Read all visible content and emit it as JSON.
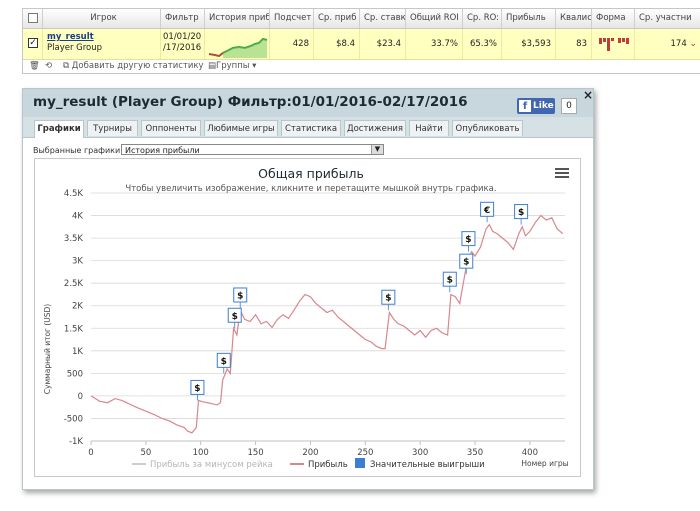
{
  "stats_table": {
    "columns": [
      "Игрок",
      "Фильтр",
      "История прибы",
      "Подсчет",
      "Ср. приб",
      "Ср. ставк",
      "Общий ROI",
      "Ср. RO:",
      "Прибыль",
      "Квалис",
      "Форма",
      "Ср. участни"
    ],
    "row": {
      "player_name": "my_result",
      "player_group": "Player Group",
      "filter_line1": "01/01/20",
      "filter_line2": "/17/2016",
      "count": "428",
      "avg_profit": "$8.4",
      "avg_stake": "$23.4",
      "total_roi": "33.7%",
      "avg_roi": "65.3%",
      "profit": "$3,593",
      "qualifications": "83",
      "avg_entrants": "174"
    },
    "toolbar": {
      "add_stat": "Добавить другую статистику",
      "groups": "Группы"
    }
  },
  "window": {
    "title": "my_result (Player Group) Фильтр:01/01/2016-02/17/2016",
    "like_label": "Like",
    "like_count": "0",
    "tabs": [
      "Графики",
      "Турниры",
      "Оппоненты",
      "Любимые игры",
      "Статистика",
      "Достижения",
      "Найти",
      "Опубликовать"
    ],
    "active_tab": 0,
    "select_label": "Выбранные графики:",
    "select_value": "История прибыли"
  },
  "chart_data": {
    "type": "line",
    "title": "Общая прибыль",
    "subtitle": "Чтобы увеличить изображение, кликните и перетащите мышкой внутрь графика.",
    "xlabel": "Номер игры",
    "ylabel": "Суммарный итог (USD)",
    "xlim": [
      0,
      432
    ],
    "ylim": [
      -1000,
      4500
    ],
    "x_ticks": [
      0,
      50,
      100,
      150,
      200,
      250,
      300,
      350,
      400
    ],
    "y_ticks": [
      -1000,
      -500,
      0,
      500,
      1000,
      1500,
      2000,
      2500,
      3000,
      3500,
      4000,
      4500
    ],
    "y_tick_labels": [
      "-1K",
      "-500",
      "0",
      "500",
      "1K",
      "1.5K",
      "2K",
      "2.5K",
      "3K",
      "3.5K",
      "4K",
      "4.5K"
    ],
    "legend": [
      {
        "name": "Прибыль за минусом рейка",
        "color": "#cccccc"
      },
      {
        "name": "Прибыль",
        "color": "#d9868c"
      },
      {
        "name": "Значительные выигрыши",
        "color": "#3b7fd1"
      }
    ],
    "series": [
      {
        "name": "Прибыль",
        "color": "#d9868c",
        "points": [
          [
            0,
            0
          ],
          [
            8,
            -120
          ],
          [
            15,
            -150
          ],
          [
            22,
            -60
          ],
          [
            28,
            -100
          ],
          [
            35,
            -180
          ],
          [
            42,
            -260
          ],
          [
            50,
            -340
          ],
          [
            58,
            -420
          ],
          [
            65,
            -500
          ],
          [
            72,
            -560
          ],
          [
            78,
            -640
          ],
          [
            85,
            -700
          ],
          [
            88,
            -780
          ],
          [
            92,
            -820
          ],
          [
            96,
            -700
          ],
          [
            98,
            -100
          ],
          [
            102,
            -130
          ],
          [
            108,
            -160
          ],
          [
            115,
            -200
          ],
          [
            118,
            -150
          ],
          [
            120,
            350
          ],
          [
            124,
            600
          ],
          [
            127,
            500
          ],
          [
            130,
            1500
          ],
          [
            133,
            1350
          ],
          [
            136,
            1900
          ],
          [
            140,
            1700
          ],
          [
            145,
            1650
          ],
          [
            150,
            1800
          ],
          [
            155,
            1600
          ],
          [
            160,
            1650
          ],
          [
            165,
            1520
          ],
          [
            170,
            1700
          ],
          [
            175,
            1800
          ],
          [
            180,
            1720
          ],
          [
            185,
            1900
          ],
          [
            190,
            2100
          ],
          [
            195,
            2250
          ],
          [
            200,
            2200
          ],
          [
            205,
            2050
          ],
          [
            210,
            1950
          ],
          [
            215,
            1850
          ],
          [
            220,
            1900
          ],
          [
            225,
            1750
          ],
          [
            230,
            1650
          ],
          [
            235,
            1550
          ],
          [
            240,
            1450
          ],
          [
            245,
            1350
          ],
          [
            250,
            1250
          ],
          [
            255,
            1200
          ],
          [
            260,
            1100
          ],
          [
            265,
            1050
          ],
          [
            268,
            1050
          ],
          [
            272,
            1850
          ],
          [
            276,
            1700
          ],
          [
            280,
            1600
          ],
          [
            285,
            1550
          ],
          [
            290,
            1450
          ],
          [
            295,
            1350
          ],
          [
            300,
            1450
          ],
          [
            305,
            1300
          ],
          [
            310,
            1450
          ],
          [
            315,
            1500
          ],
          [
            320,
            1400
          ],
          [
            325,
            1350
          ],
          [
            328,
            2250
          ],
          [
            332,
            2200
          ],
          [
            336,
            2050
          ],
          [
            340,
            2600
          ],
          [
            343,
            3000
          ],
          [
            347,
            3200
          ],
          [
            350,
            3100
          ],
          [
            355,
            3300
          ],
          [
            360,
            3700
          ],
          [
            363,
            3800
          ],
          [
            366,
            3650
          ],
          [
            370,
            3600
          ],
          [
            375,
            3500
          ],
          [
            380,
            3400
          ],
          [
            385,
            3250
          ],
          [
            390,
            3600
          ],
          [
            393,
            3750
          ],
          [
            396,
            3550
          ],
          [
            400,
            3650
          ],
          [
            405,
            3850
          ],
          [
            410,
            4000
          ],
          [
            415,
            3900
          ],
          [
            420,
            3950
          ],
          [
            425,
            3700
          ],
          [
            430,
            3600
          ]
        ]
      }
    ],
    "big_wins": [
      {
        "x": 97,
        "y": -100,
        "label": "$"
      },
      {
        "x": 121,
        "y": 500,
        "label": "$"
      },
      {
        "x": 131,
        "y": 1500,
        "label": "$"
      },
      {
        "x": 136,
        "y": 1950,
        "label": "$"
      },
      {
        "x": 271,
        "y": 1900,
        "label": "$"
      },
      {
        "x": 327,
        "y": 2300,
        "label": "$"
      },
      {
        "x": 342,
        "y": 2700,
        "label": "$"
      },
      {
        "x": 344,
        "y": 3200,
        "label": "$"
      },
      {
        "x": 361,
        "y": 3850,
        "label": "€"
      },
      {
        "x": 392,
        "y": 3800,
        "label": "$"
      }
    ]
  }
}
